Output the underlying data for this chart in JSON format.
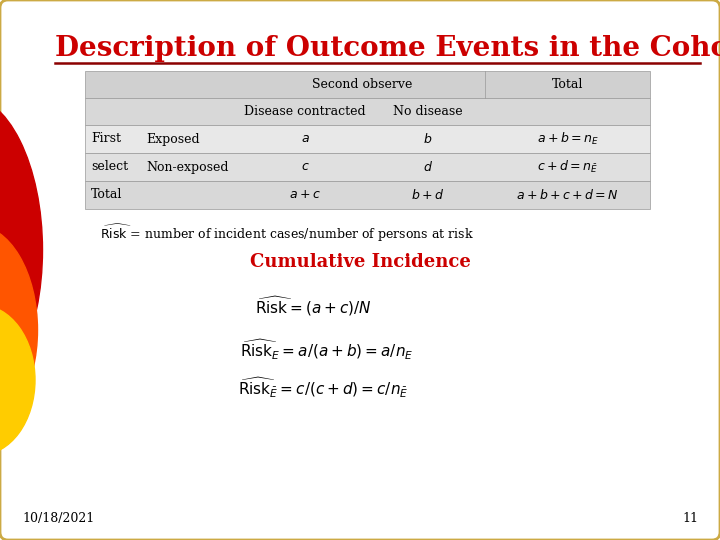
{
  "title": "Description of Outcome Events in the Cohort",
  "title_color": "#cc0000",
  "title_fontsize": 20,
  "bg_color": "#ffffff",
  "border_color": "#ccaa44",
  "slide_number": "11",
  "date": "10/18/2021",
  "risk_def": "$\\widehat{\\mathrm{Risk}}$ = number of incident cases/number of persons at risk",
  "cumulative_incidence_label": "Cumulative Incidence",
  "table_header1_bg": "#d0d0d0",
  "table_header2_bg": "#d8d8d8",
  "table_row_bgs": [
    "#e8e8e8",
    "#e0e0e0",
    "#d8d8d8"
  ],
  "blob_colors": [
    "#cc0000",
    "#ff5500",
    "#ffcc00"
  ]
}
